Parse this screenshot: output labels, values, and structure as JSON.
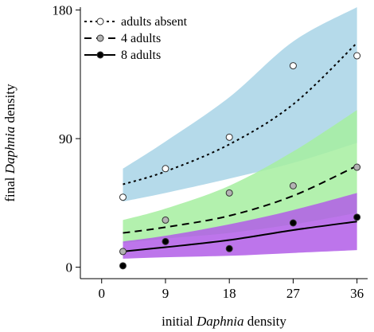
{
  "chart_data": {
    "type": "line",
    "xlabel_parts": [
      "initial ",
      "Daphnia",
      " density"
    ],
    "ylabel_parts": [
      "final ",
      "Daphnia",
      " density"
    ],
    "xlim": [
      -3,
      37.5
    ],
    "ylim": [
      -8,
      182
    ],
    "x_ticks": [
      0,
      9,
      18,
      27,
      36
    ],
    "y_ticks": [
      0,
      90,
      180
    ],
    "legend_position": "top-left",
    "series": [
      {
        "name": "adults absent",
        "line_style": "dotted",
        "marker_fill": "#ffffff",
        "band_color": "#a8d4e6",
        "points": [
          [
            3,
            49
          ],
          [
            9,
            69
          ],
          [
            18,
            91
          ],
          [
            27,
            141
          ],
          [
            36,
            148
          ]
        ],
        "fit": [
          [
            3,
            58
          ],
          [
            9,
            67
          ],
          [
            18,
            86
          ],
          [
            27,
            114
          ],
          [
            36,
            157
          ]
        ],
        "band_lower": [
          [
            3,
            46
          ],
          [
            9,
            52
          ],
          [
            18,
            62
          ],
          [
            27,
            73
          ],
          [
            36,
            87
          ]
        ],
        "band_upper": [
          [
            3,
            69
          ],
          [
            9,
            88
          ],
          [
            18,
            119
          ],
          [
            27,
            158
          ],
          [
            36,
            182
          ]
        ]
      },
      {
        "name": "4 adults",
        "line_style": "dashed",
        "marker_fill": "#b3b3b3",
        "band_color": "#a6eea0",
        "points": [
          [
            3,
            11
          ],
          [
            9,
            33
          ],
          [
            18,
            52
          ],
          [
            27,
            57
          ],
          [
            36,
            70
          ]
        ],
        "fit": [
          [
            3,
            24
          ],
          [
            9,
            28
          ],
          [
            18,
            36
          ],
          [
            27,
            50
          ],
          [
            36,
            71
          ]
        ],
        "band_lower": [
          [
            3,
            17
          ],
          [
            9,
            20
          ],
          [
            18,
            24
          ],
          [
            27,
            30
          ],
          [
            36,
            38
          ]
        ],
        "band_upper": [
          [
            3,
            33
          ],
          [
            9,
            41
          ],
          [
            18,
            57
          ],
          [
            27,
            81
          ],
          [
            36,
            110
          ]
        ]
      },
      {
        "name": "8 adults",
        "line_style": "solid",
        "marker_fill": "#000000",
        "band_color": "#b15de8",
        "points": [
          [
            3,
            1
          ],
          [
            9,
            18
          ],
          [
            18,
            13
          ],
          [
            27,
            31
          ],
          [
            36,
            35
          ]
        ],
        "fit": [
          [
            3,
            11
          ],
          [
            9,
            14
          ],
          [
            18,
            19
          ],
          [
            27,
            26
          ],
          [
            36,
            32
          ]
        ],
        "band_lower": [
          [
            3,
            6
          ],
          [
            9,
            7
          ],
          [
            18,
            8
          ],
          [
            27,
            10
          ],
          [
            36,
            12
          ]
        ],
        "band_upper": [
          [
            3,
            18
          ],
          [
            9,
            22
          ],
          [
            18,
            30
          ],
          [
            27,
            40
          ],
          [
            36,
            52
          ]
        ]
      }
    ]
  }
}
